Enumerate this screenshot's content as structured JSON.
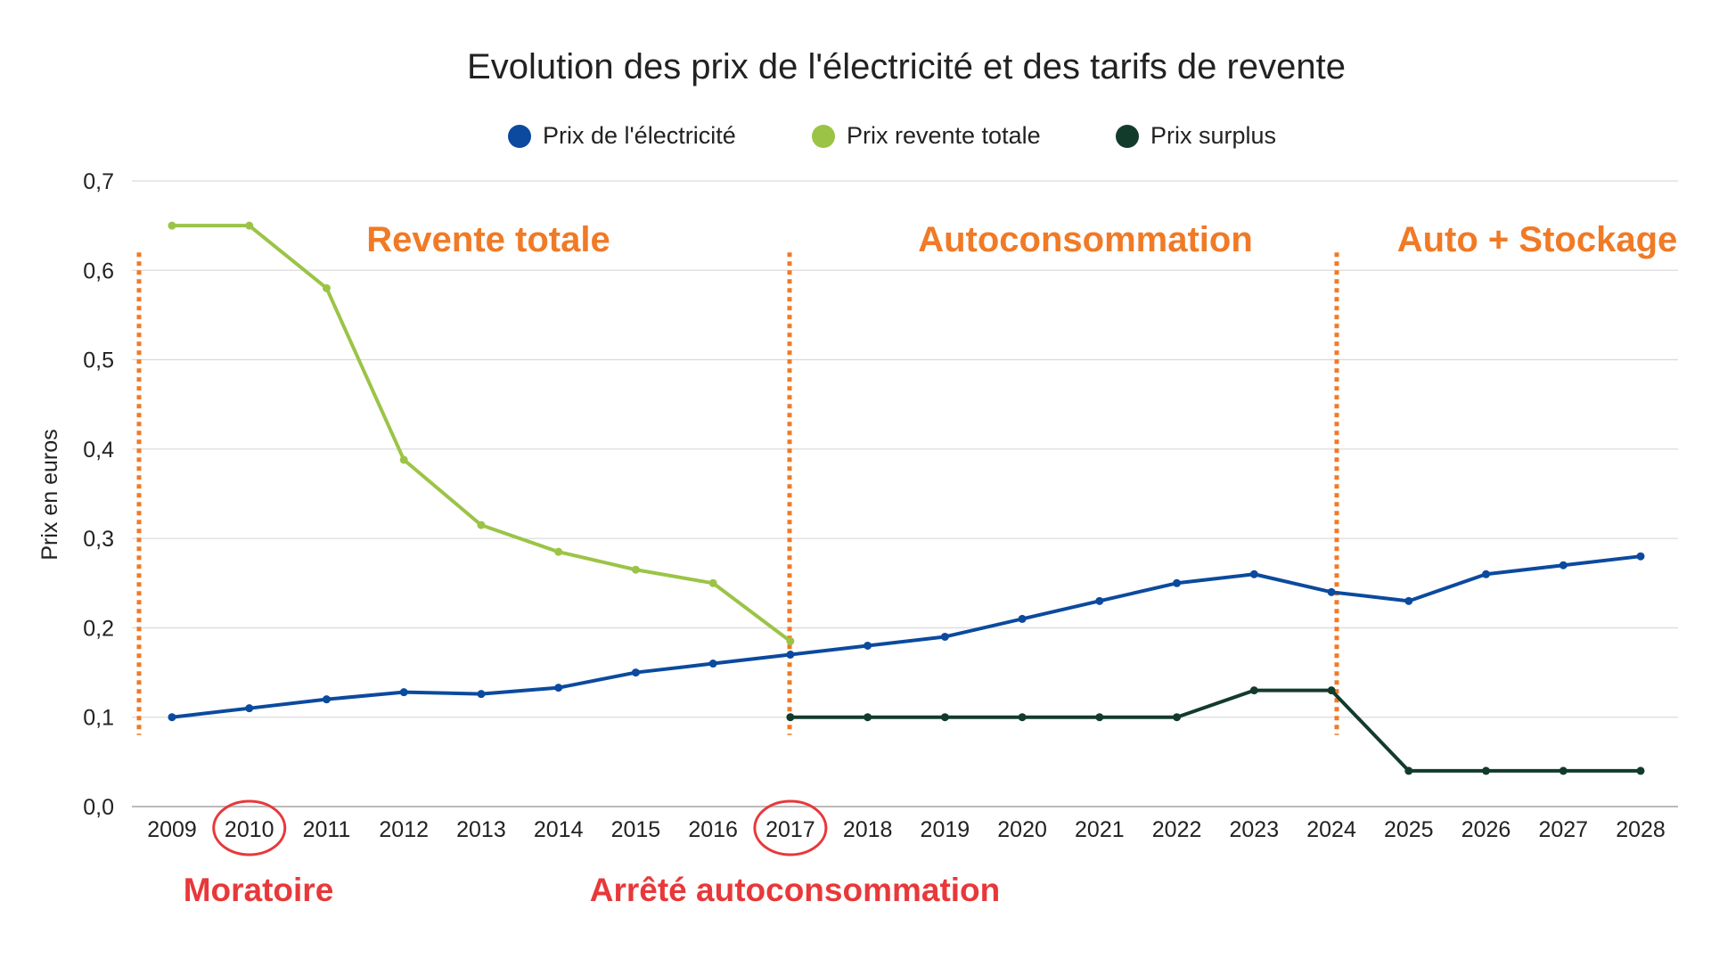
{
  "chart_data": {
    "type": "line",
    "title": "Evolution des prix de l'électricité et des tarifs de revente",
    "xlabel": "",
    "ylabel": "Prix en euros",
    "ylim": [
      0,
      0.7
    ],
    "yticks": [
      "0,0",
      "0,1",
      "0,2",
      "0,3",
      "0,4",
      "0,5",
      "0,6",
      "0,7"
    ],
    "grid": true,
    "legend_position": "top",
    "categories": [
      "2009",
      "2010",
      "2011",
      "2012",
      "2013",
      "2014",
      "2015",
      "2016",
      "2017",
      "2018",
      "2019",
      "2020",
      "2021",
      "2022",
      "2023",
      "2024",
      "2025",
      "2026",
      "2027",
      "2028"
    ],
    "series": [
      {
        "name": "Prix de l'électricité",
        "color": "#0b4a9e",
        "values": [
          0.1,
          0.11,
          0.12,
          0.128,
          0.126,
          0.133,
          0.15,
          0.16,
          0.17,
          0.18,
          0.19,
          0.21,
          0.23,
          0.25,
          0.26,
          0.24,
          0.23,
          0.26,
          0.27,
          0.28
        ]
      },
      {
        "name": "Prix revente totale",
        "color": "#9bc447",
        "values": [
          0.65,
          0.65,
          0.58,
          0.388,
          0.315,
          0.285,
          0.265,
          0.25,
          0.185,
          null,
          null,
          null,
          null,
          null,
          null,
          null,
          null,
          null,
          null,
          null
        ]
      },
      {
        "name": "Prix surplus",
        "color": "#133b2c",
        "values": [
          null,
          null,
          null,
          null,
          null,
          null,
          null,
          null,
          0.1,
          0.1,
          0.1,
          0.1,
          0.1,
          0.1,
          0.13,
          0.13,
          0.04,
          0.04,
          0.04,
          0.04
        ]
      }
    ],
    "periods": [
      {
        "label": "Revente totale",
        "start": "2009"
      },
      {
        "label": "Autoconsommation",
        "start": "2017"
      },
      {
        "label": "Auto + Stockage",
        "start": "2024"
      }
    ],
    "events": [
      {
        "label": "Moratoire",
        "year": "2010"
      },
      {
        "label": "Arrêté autoconsommation",
        "year": "2017"
      }
    ],
    "period_color": "#f07a26",
    "event_color": "#e8383a"
  }
}
